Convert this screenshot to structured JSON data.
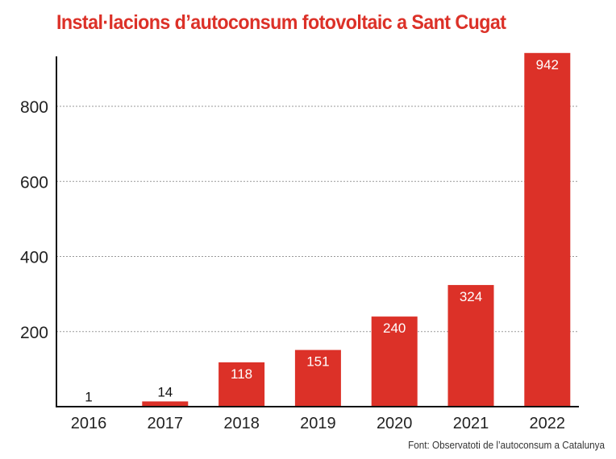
{
  "chart_data": {
    "type": "bar",
    "title": "Instal·lacions d’autoconsum fotovoltaic a Sant Cugat",
    "source": "Font: Observatoti de l’autoconsum a Catalunya",
    "categories": [
      "2016",
      "2017",
      "2018",
      "2019",
      "2020",
      "2021",
      "2022"
    ],
    "values": [
      1,
      14,
      118,
      151,
      240,
      324,
      942
    ],
    "data_labels": [
      "1",
      "14",
      "118",
      "151",
      "240",
      "324",
      "942"
    ],
    "ylim": [
      0,
      942
    ],
    "yticks": [
      200,
      400,
      600,
      800
    ],
    "ytick_labels": [
      "200",
      "400",
      "600",
      "800"
    ],
    "grid": "horizontal dotted",
    "bar_color": "#dc3128",
    "title_color": "#dc3128"
  }
}
